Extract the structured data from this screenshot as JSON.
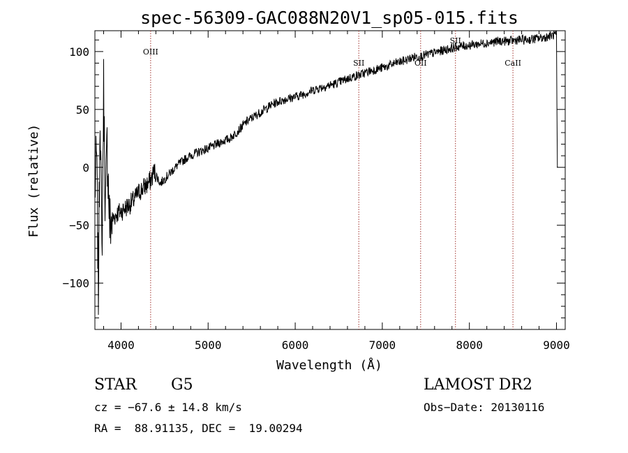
{
  "chart_data": {
    "type": "line",
    "title": "spec-56309-GAC088N20V1_sp05-015.fits",
    "xlabel": "Wavelength (Å)",
    "ylabel": "Flux (relative)",
    "xlim": [
      3700,
      9100
    ],
    "ylim": [
      -140,
      118
    ],
    "xticks": [
      4000,
      5000,
      6000,
      7000,
      8000,
      9000
    ],
    "yticks": [
      -100,
      -50,
      0,
      50,
      100
    ],
    "grid": false,
    "series": [
      {
        "x": [
          3700,
          3720,
          3740,
          3760,
          3780,
          3800,
          3820,
          3840,
          3870,
          3900,
          3950,
          4000,
          4050,
          4100,
          4150,
          4200,
          4250,
          4300,
          4350,
          4380,
          4450,
          4550,
          4650,
          4750,
          4850,
          4950,
          5050,
          5150,
          5250,
          5350,
          5450,
          5550,
          5650,
          5750,
          5850,
          5950,
          6050,
          6150,
          6250,
          6350,
          6450,
          6550,
          6650,
          6750,
          6850,
          6950,
          7050,
          7150,
          7250,
          7350,
          7450,
          7550,
          7650,
          7750,
          7850,
          7950,
          8050,
          8150,
          8250,
          8350,
          8450,
          8550,
          8650,
          8750,
          8850,
          8950,
          9000,
          9005,
          9010
        ],
        "y": [
          -20,
          10,
          -110,
          60,
          -80,
          70,
          -40,
          20,
          -50,
          -45,
          -40,
          -38,
          -35,
          -32,
          -28,
          -22,
          -18,
          -15,
          -10,
          -3,
          -14,
          -6,
          2,
          8,
          12,
          15,
          18,
          22,
          25,
          32,
          40,
          45,
          50,
          55,
          58,
          60,
          62,
          65,
          68,
          70,
          72,
          75,
          78,
          80,
          83,
          85,
          87,
          90,
          92,
          95,
          96,
          98,
          100,
          102,
          104,
          105,
          106,
          107,
          108,
          109,
          109,
          110,
          110,
          111,
          112,
          114,
          115,
          55,
          0
        ]
      }
    ],
    "lines": [
      {
        "x": 4340,
        "label": "OIII"
      },
      {
        "x": 6730,
        "label": "SII"
      },
      {
        "x": 7440,
        "label": "OII"
      },
      {
        "x": 7840,
        "label": "SII"
      },
      {
        "x": 8500,
        "label": "CaII"
      }
    ]
  },
  "info": {
    "object_class": "STAR",
    "subclass": "G5",
    "survey": "LAMOST DR2",
    "redshift": "cz = −67.6 ± 14.8 km/s",
    "obs_date": "Obs−Date: 20130116",
    "coords": "RA =  88.91135, DEC =  19.00294"
  }
}
